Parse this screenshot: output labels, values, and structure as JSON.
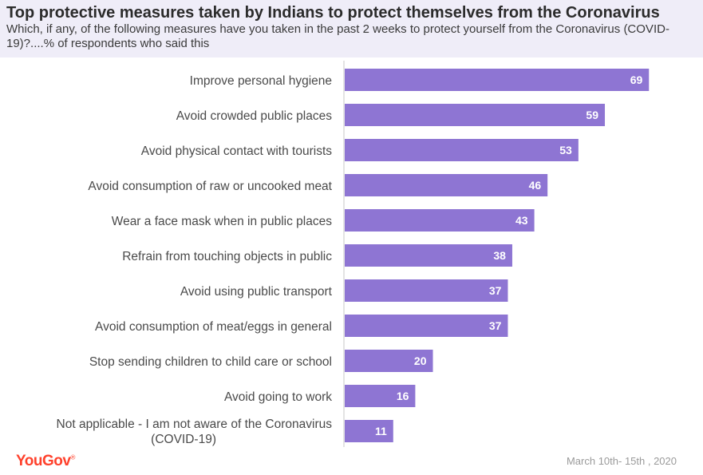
{
  "chart_data": {
    "type": "bar",
    "orientation": "horizontal",
    "title": "Top protective measures taken by Indians to protect themselves from the Coronavirus",
    "subtitle": "Which, if any, of the following measures have you taken in the past 2 weeks to protect yourself from the Coronavirus (COVID-19)?....% of respondents who said this",
    "categories": [
      "Improve personal hygiene",
      "Avoid crowded public places",
      "Avoid physical contact with tourists",
      "Avoid consumption of raw or uncooked meat",
      "Wear a face mask when in public places",
      "Refrain from touching objects in public",
      "Avoid using public transport",
      "Avoid consumption of meat/eggs in general",
      "Stop sending children to child care or school",
      "Avoid going to work",
      "Not applicable - I am not aware of the Coronavirus (COVID-19)"
    ],
    "values": [
      69,
      59,
      53,
      46,
      43,
      38,
      37,
      37,
      20,
      16,
      11
    ],
    "xlim": [
      0,
      78
    ],
    "xlabel": "",
    "ylabel": "",
    "bar_color": "#8e75d3",
    "axis_color": "#c8c8c8",
    "value_label_color": "#ffffff"
  },
  "brand": {
    "logo_text": "YouGov",
    "logo_mark": "®",
    "logo_color": "#ff412c"
  },
  "footer": {
    "date": "March 10th- 15th , 2020"
  },
  "header": {
    "background": "#efedf8"
  }
}
